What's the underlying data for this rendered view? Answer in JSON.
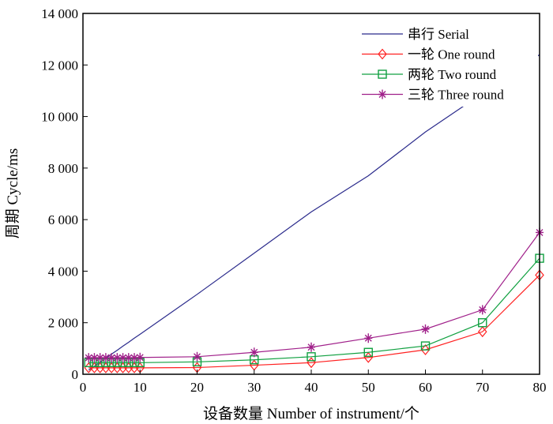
{
  "chart_data": {
    "type": "line",
    "xlabel": "设备数量 Number of instrument/个",
    "ylabel": "周期 Cycle/ms",
    "xlim": [
      0,
      80
    ],
    "ylim": [
      0,
      14000
    ],
    "xticks": [
      0,
      10,
      20,
      30,
      40,
      50,
      60,
      70,
      80
    ],
    "xtick_labels": [
      "0",
      "10",
      "20",
      "30",
      "40",
      "50",
      "60",
      "70",
      "80"
    ],
    "yticks": [
      0,
      2000,
      4000,
      6000,
      8000,
      10000,
      12000,
      14000
    ],
    "ytick_labels": [
      "0",
      "2 000",
      "4 000",
      "6 000",
      "8 000",
      "10 000",
      "12 000",
      "14 000"
    ],
    "legend_position": "top-right",
    "grid": false,
    "series": [
      {
        "name": "串行 Serial",
        "color": "#2b2b8c",
        "marker": "none",
        "x": [
          1,
          2,
          3,
          4,
          5,
          6,
          7,
          8,
          9,
          10,
          20,
          30,
          40,
          50,
          60,
          70,
          80
        ],
        "y": [
          160,
          310,
          470,
          620,
          780,
          930,
          1090,
          1240,
          1400,
          1550,
          3100,
          4700,
          6300,
          7700,
          9400,
          10900,
          12400
        ]
      },
      {
        "name": "一轮 One round",
        "color": "#ff2020",
        "marker": "diamond",
        "x": [
          1,
          2,
          3,
          4,
          5,
          6,
          7,
          8,
          9,
          10,
          20,
          30,
          40,
          50,
          60,
          70,
          80
        ],
        "y": [
          250,
          250,
          250,
          250,
          250,
          250,
          250,
          250,
          250,
          250,
          260,
          350,
          450,
          650,
          950,
          1650,
          3850
        ]
      },
      {
        "name": "两轮 Two round",
        "color": "#10a040",
        "marker": "square",
        "x": [
          1,
          2,
          3,
          4,
          5,
          6,
          7,
          8,
          9,
          10,
          20,
          30,
          40,
          50,
          60,
          70,
          80
        ],
        "y": [
          450,
          450,
          450,
          450,
          450,
          450,
          450,
          450,
          450,
          450,
          480,
          560,
          680,
          850,
          1100,
          2000,
          4500
        ]
      },
      {
        "name": "三轮 Three round",
        "color": "#a0208a",
        "marker": "star",
        "x": [
          1,
          2,
          3,
          4,
          5,
          6,
          7,
          8,
          9,
          10,
          20,
          30,
          40,
          50,
          60,
          70,
          80
        ],
        "y": [
          640,
          640,
          640,
          640,
          640,
          640,
          640,
          640,
          640,
          650,
          680,
          850,
          1050,
          1400,
          1750,
          2500,
          5500
        ]
      }
    ]
  }
}
